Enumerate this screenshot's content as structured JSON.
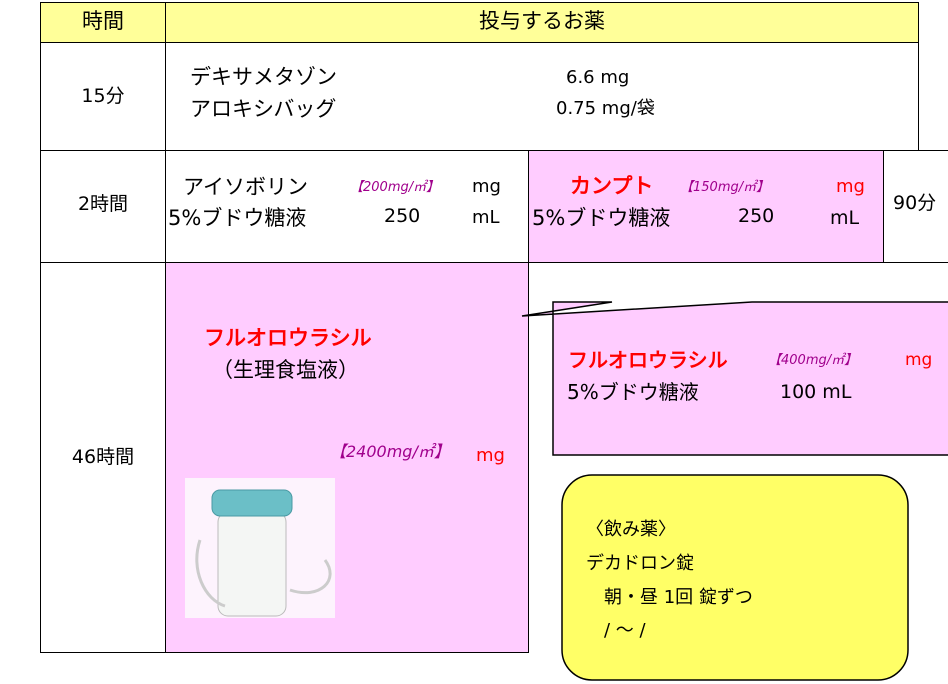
{
  "header": {
    "time": "時間",
    "medicine": "投与するお薬"
  },
  "rows": [
    {
      "time": "15分",
      "drugs": [
        {
          "name": "デキサメタゾン",
          "dose": "6.6 mg"
        },
        {
          "name": "アロキシバッグ",
          "dose": "0.75 mg/袋"
        }
      ]
    },
    {
      "time": "2時間",
      "left": {
        "name": "アイソボリン",
        "rate": "【200mg/㎡】",
        "unit": "mg",
        "solution": "5%ブドウ糖液",
        "volume": "250",
        "volume_unit": "mL"
      },
      "right": {
        "name": "カンプト",
        "rate": "【150mg/㎡】",
        "unit": "mg",
        "solution": "5%ブドウ糖液",
        "volume": "250",
        "volume_unit": "mL"
      },
      "duration": "90分"
    },
    {
      "time": "46時間",
      "name": "フルオロウラシル",
      "solution": "（生理食塩液）",
      "rate": "【2400mg/㎡】",
      "unit": "mg"
    }
  ],
  "callout": {
    "name": "フルオロウラシル",
    "rate": "【400mg/㎡】",
    "unit": "mg",
    "solution": "5%ブドウ糖液",
    "volume": "100  mL"
  },
  "note": [
    "〈飲み薬〉",
    "デカドロン錠",
    "朝・昼  1回   錠ずつ",
    "/  ～  /"
  ]
}
